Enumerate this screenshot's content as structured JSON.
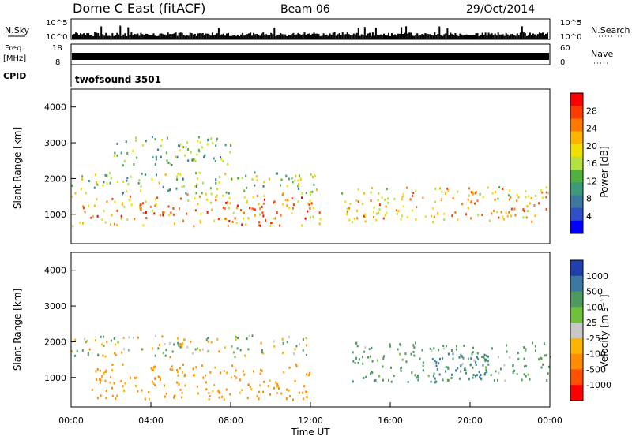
{
  "header": {
    "station": "Dome C East (fitACF)",
    "beam": "Beam 06",
    "date": "29/Oct/2014"
  },
  "noise_panel": {
    "left_label": "N.Sky",
    "right_label": "N.Search",
    "left_ticks": [
      "10^5",
      "10^0"
    ],
    "right_ticks": [
      "10^5",
      "10^0"
    ]
  },
  "freq_panel": {
    "left_label_line1": "Freq.",
    "left_label_line2": "[MHz]",
    "right_label": "Nave",
    "left_ticks": [
      "18",
      "8"
    ],
    "right_ticks": [
      "60",
      "0"
    ]
  },
  "cpid_panel": {
    "label": "CPID",
    "program": "twofsound  3501"
  },
  "x_axis": {
    "title": "Time UT",
    "ticks": [
      "00:00",
      "04:00",
      "08:00",
      "12:00",
      "16:00",
      "20:00",
      "00:00"
    ]
  },
  "power_panel": {
    "ylabel": "Slant Range [km]",
    "yticks": [
      "4000",
      "3000",
      "2000",
      "1000"
    ],
    "cbar_title": "Power [dB]",
    "cbar_ticks": [
      "28",
      "24",
      "20",
      "16",
      "12",
      "8",
      "4"
    ],
    "cbar_colors": [
      "#ff0000",
      "#ff3c00",
      "#ff7800",
      "#ffb400",
      "#f0e000",
      "#b4e040",
      "#50b040",
      "#3c9a78",
      "#3c78a0",
      "#3050c8",
      "#0000ff"
    ]
  },
  "velocity_panel": {
    "ylabel": "Slant Range [km]",
    "yticks": [
      "4000",
      "3000",
      "2000",
      "1000"
    ],
    "cbar_title": "Velocity  [m s⁻¹]",
    "cbar_ticks": [
      "1000",
      "500",
      "100",
      "25",
      "-25",
      "-100",
      "-500",
      "-1000"
    ],
    "cbar_colors": [
      "#2040b0",
      "#3c78a0",
      "#4c9a60",
      "#70c040",
      "#c8c8c8",
      "#ffb400",
      "#ff8c00",
      "#ff5000",
      "#ff0000"
    ]
  },
  "chart_data": [
    {
      "type": "heatmap",
      "title": "Power",
      "xlabel": "Time UT",
      "ylabel": "Slant Range [km]",
      "xlim": [
        0,
        24
      ],
      "ylim": [
        180,
        4500
      ],
      "colorbar": {
        "label": "Power [dB]",
        "range": [
          0,
          30
        ]
      },
      "bands": [
        {
          "t_start": 0.0,
          "t_end": 12.5,
          "range_low": 700,
          "range_high": 1600,
          "typical_value": 22
        },
        {
          "t_start": 0.0,
          "t_end": 12.5,
          "range_low": 1600,
          "range_high": 2200,
          "typical_value": 14
        },
        {
          "t_start": 13.5,
          "t_end": 24.0,
          "range_low": 800,
          "range_high": 1800,
          "typical_value": 20
        },
        {
          "t_start": 2.0,
          "t_end": 8.0,
          "range_low": 2400,
          "range_high": 3200,
          "typical_value": 12
        }
      ]
    },
    {
      "type": "heatmap",
      "title": "Velocity",
      "xlabel": "Time UT",
      "ylabel": "Slant Range [km]",
      "xlim": [
        0,
        24
      ],
      "ylim": [
        180,
        4500
      ],
      "colorbar": {
        "label": "Velocity [m s-1]",
        "ticks": [
          1000,
          500,
          100,
          25,
          -25,
          -100,
          -500,
          -1000
        ]
      },
      "bands": [
        {
          "t_start": 1.0,
          "t_end": 12.0,
          "range_low": 400,
          "range_high": 1400,
          "typical_value": -200
        },
        {
          "t_start": 0.0,
          "t_end": 12.0,
          "range_low": 1600,
          "range_high": 2200,
          "typical_value": 0
        },
        {
          "t_start": 14.0,
          "t_end": 24.0,
          "range_low": 900,
          "range_high": 2000,
          "typical_value": 150
        },
        {
          "t_start": 18.0,
          "t_end": 21.0,
          "range_low": 900,
          "range_high": 1700,
          "typical_value": 600
        }
      ]
    }
  ]
}
